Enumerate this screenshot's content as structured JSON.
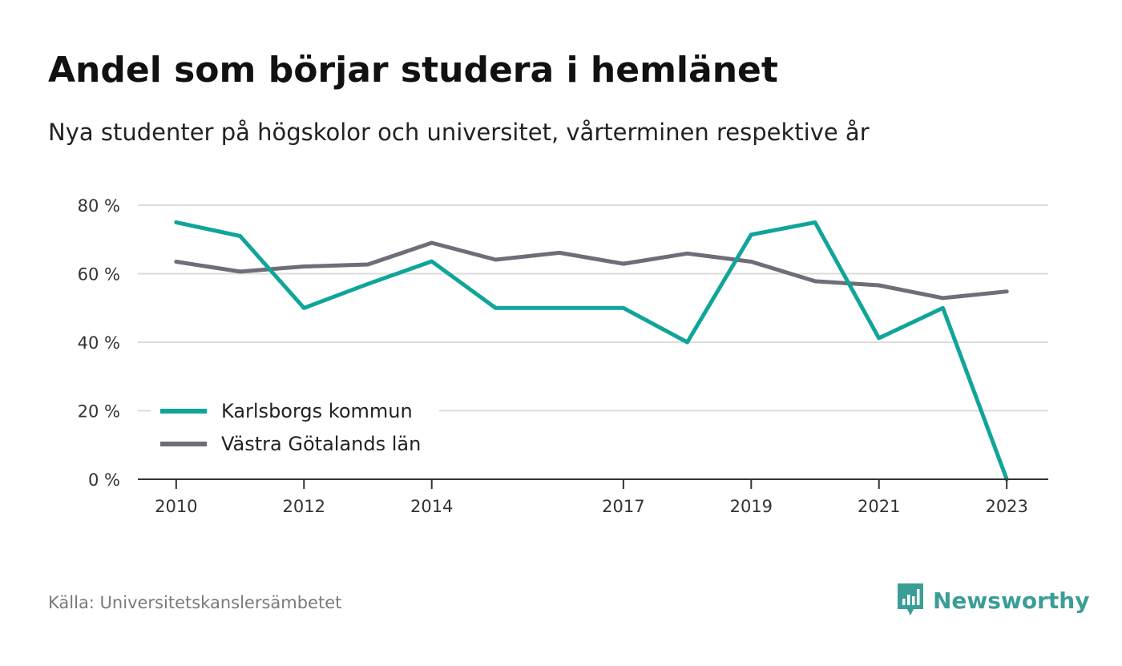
{
  "header": {
    "title": "Andel som börjar studera i hemlänet",
    "subtitle": "Nya studenter på högskolor och universitet, vårterminen respektive år"
  },
  "footer": {
    "source": "Källa: Universitetskanslersämbetet",
    "brand": "Newsworthy",
    "brand_icon": "bar-chart-speech-bubble-icon",
    "brand_color": "#3a9e96"
  },
  "chart_data": {
    "type": "line",
    "title": "Andel som börjar studera i hemlänet",
    "subtitle": "Nya studenter på högskolor och universitet, vårterminen respektive år",
    "xlabel": "",
    "ylabel": "",
    "x": [
      2010,
      2011,
      2012,
      2013,
      2014,
      2015,
      2016,
      2017,
      2018,
      2019,
      2020,
      2021,
      2022,
      2023
    ],
    "x_tick_values": [
      2010,
      2012,
      2014,
      2017,
      2019,
      2021,
      2023
    ],
    "x_tick_labels": [
      "2010",
      "2012",
      "2014",
      "2017",
      "2019",
      "2021",
      "2023"
    ],
    "xlim": [
      2009.4,
      2023.65
    ],
    "ylim": [
      0,
      80
    ],
    "y_ticks": [
      0,
      20,
      40,
      60,
      80
    ],
    "y_tick_labels": [
      "0 %",
      "20 %",
      "40 %",
      "60 %",
      "80 %"
    ],
    "grid": true,
    "legend_position": "bottom-left",
    "series": [
      {
        "name": "Karlsborgs kommun",
        "color": "#11a59a",
        "values": [
          75,
          71,
          50,
          57,
          63.6,
          50,
          50,
          50,
          40,
          71.4,
          75,
          41.2,
          50,
          0
        ]
      },
      {
        "name": "Västra Götalands län",
        "color": "#6e6d78",
        "values": [
          63.5,
          60.6,
          62.1,
          62.7,
          69,
          64.1,
          66.1,
          62.9,
          65.9,
          63.5,
          57.8,
          56.6,
          52.9,
          54.8
        ]
      }
    ]
  }
}
